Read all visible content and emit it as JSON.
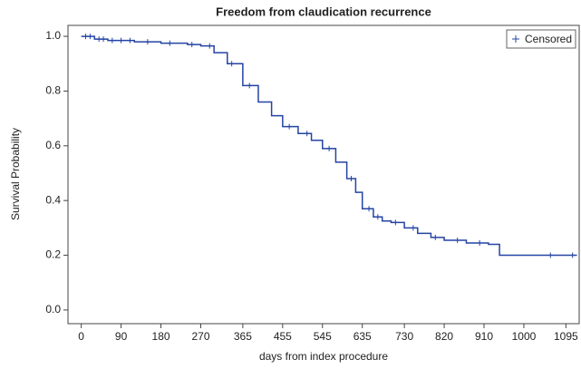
{
  "chart_data": {
    "type": "step",
    "title": "Freedom from claudication recurrence",
    "x_label": "days from index procedure",
    "y_label": "Survival Probability",
    "x": [
      0,
      30,
      60,
      120,
      180,
      240,
      270,
      300,
      330,
      365,
      400,
      430,
      455,
      490,
      520,
      545,
      575,
      600,
      620,
      635,
      660,
      680,
      700,
      730,
      760,
      790,
      820,
      870,
      920,
      945,
      1120
    ],
    "values": [
      1.0,
      0.99,
      0.985,
      0.98,
      0.975,
      0.97,
      0.965,
      0.94,
      0.9,
      0.82,
      0.76,
      0.71,
      0.67,
      0.645,
      0.62,
      0.59,
      0.54,
      0.48,
      0.43,
      0.37,
      0.34,
      0.325,
      0.32,
      0.3,
      0.28,
      0.265,
      0.255,
      0.245,
      0.24,
      0.2,
      0.2
    ],
    "color": "#2444a4",
    "censored": {
      "name": "Censored",
      "x": [
        10,
        20,
        40,
        50,
        70,
        90,
        110,
        150,
        200,
        250,
        290,
        340,
        380,
        470,
        510,
        560,
        610,
        650,
        670,
        710,
        750,
        800,
        850,
        900,
        1060,
        1110
      ],
      "values": [
        1.0,
        1.0,
        0.99,
        0.99,
        0.985,
        0.985,
        0.985,
        0.98,
        0.975,
        0.97,
        0.965,
        0.9,
        0.82,
        0.67,
        0.645,
        0.59,
        0.48,
        0.37,
        0.34,
        0.32,
        0.3,
        0.265,
        0.255,
        0.245,
        0.2,
        0.2
      ]
    },
    "xlim": [
      -30,
      1125
    ],
    "ylim": [
      -0.05,
      1.04
    ],
    "xticks": [
      0,
      90,
      180,
      270,
      365,
      455,
      545,
      635,
      730,
      820,
      910,
      1000,
      1095
    ],
    "yticks": [
      {
        "value": 0,
        "label": "0.0"
      },
      0.2,
      0.4,
      0.6,
      0.8,
      {
        "value": 1,
        "label": "1.0"
      }
    ],
    "legend": "top-right"
  }
}
